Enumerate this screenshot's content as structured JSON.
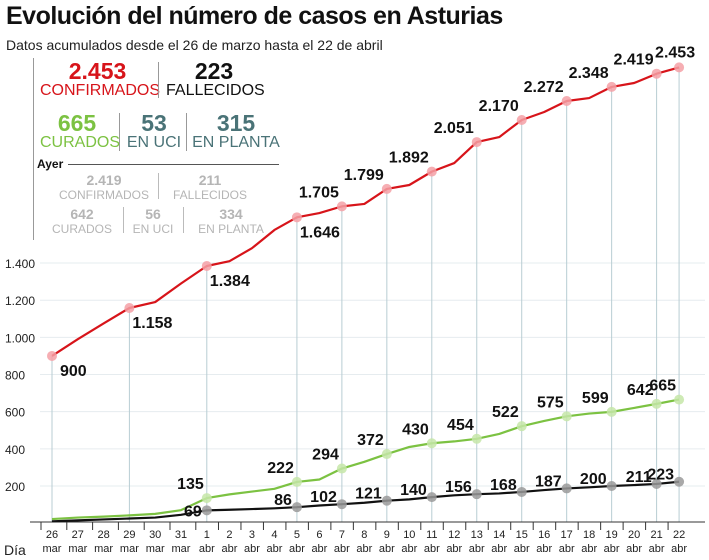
{
  "header": {
    "title": "Evolución del número de casos en Asturias",
    "subtitle": "Datos acumulados desde el 26 de marzo hasta el 22 de abril"
  },
  "summary": {
    "today": {
      "confirmed": {
        "value": "2.453",
        "label": "CONFIRMADOS",
        "color": "#d7141a"
      },
      "deaths": {
        "value": "223",
        "label": "FALLECIDOS",
        "color": "#111111"
      },
      "recovered": {
        "value": "665",
        "label": "CURADOS",
        "color": "#7cc242"
      },
      "icu": {
        "value": "53",
        "label": "EN UCI",
        "color": "#4a7377"
      },
      "ward": {
        "value": "315",
        "label": "EN PLANTA",
        "color": "#4a7377"
      }
    },
    "yesterday_label": "Ayer",
    "yesterday": {
      "confirmed": {
        "value": "2.419",
        "label": "CONFIRMADOS"
      },
      "deaths": {
        "value": "211",
        "label": "FALLECIDOS"
      },
      "recovered": {
        "value": "642",
        "label": "CURADOS"
      },
      "icu": {
        "value": "56",
        "label": "EN UCI"
      },
      "ward": {
        "value": "334",
        "label": "EN PLANTA"
      }
    }
  },
  "chart_data": {
    "type": "line",
    "title": "Evolución del número de casos en Asturias",
    "xlabel": "Día",
    "ylabel": "",
    "ylim": [
      0,
      2500
    ],
    "yticks": [
      200,
      400,
      600,
      800,
      1000,
      1200,
      1400
    ],
    "ytick_labels": [
      "200",
      "400",
      "600",
      "800",
      "1.000",
      "1.200",
      "1.400"
    ],
    "grid": true,
    "categories": [
      {
        "day": "26",
        "month": "mar"
      },
      {
        "day": "27",
        "month": "mar"
      },
      {
        "day": "28",
        "month": "mar"
      },
      {
        "day": "29",
        "month": "mar"
      },
      {
        "day": "30",
        "month": "mar"
      },
      {
        "day": "31",
        "month": "mar"
      },
      {
        "day": "1",
        "month": "abr"
      },
      {
        "day": "2",
        "month": "abr"
      },
      {
        "day": "3",
        "month": "abr"
      },
      {
        "day": "4",
        "month": "abr"
      },
      {
        "day": "5",
        "month": "abr"
      },
      {
        "day": "6",
        "month": "abr"
      },
      {
        "day": "7",
        "month": "abr"
      },
      {
        "day": "8",
        "month": "abr"
      },
      {
        "day": "9",
        "month": "abr"
      },
      {
        "day": "10",
        "month": "abr"
      },
      {
        "day": "11",
        "month": "abr"
      },
      {
        "day": "12",
        "month": "abr"
      },
      {
        "day": "13",
        "month": "abr"
      },
      {
        "day": "14",
        "month": "abr"
      },
      {
        "day": "15",
        "month": "abr"
      },
      {
        "day": "16",
        "month": "abr"
      },
      {
        "day": "17",
        "month": "abr"
      },
      {
        "day": "18",
        "month": "abr"
      },
      {
        "day": "19",
        "month": "abr"
      },
      {
        "day": "20",
        "month": "abr"
      },
      {
        "day": "21",
        "month": "abr"
      },
      {
        "day": "22",
        "month": "abr"
      }
    ],
    "series": [
      {
        "key": "confirmed",
        "color": "#d7141a",
        "marker_color": "#f4a0a6",
        "values": [
          900,
          990,
          1075,
          1158,
          1190,
          1290,
          1384,
          1410,
          1480,
          1578,
          1646,
          1669,
          1705,
          1718,
          1799,
          1820,
          1892,
          1938,
          2051,
          2078,
          2170,
          2213,
          2272,
          2288,
          2348,
          2369,
          2419,
          2453
        ],
        "labels": {
          "0": "900",
          "3": "1.158",
          "6": "1.384",
          "10": "1.646",
          "12": "1.705",
          "14": "1.799",
          "16": "1.892",
          "18": "2.051",
          "20": "2.170",
          "22": "2.272",
          "24": "2.348",
          "26": "2.419",
          "27": "2.453"
        }
      },
      {
        "key": "recovered",
        "color": "#7cc242",
        "marker_color": "#c6e6a8",
        "values": [
          22,
          30,
          35,
          42,
          50,
          70,
          135,
          155,
          170,
          185,
          222,
          235,
          294,
          330,
          372,
          410,
          430,
          440,
          454,
          480,
          522,
          550,
          575,
          590,
          599,
          620,
          642,
          665
        ],
        "labels": {
          "6": "135",
          "10": "222",
          "12": "294",
          "14": "372",
          "16": "430",
          "18": "454",
          "20": "522",
          "22": "575",
          "24": "599",
          "26": "642",
          "27": "665"
        }
      },
      {
        "key": "deaths",
        "color": "#111111",
        "marker_color": "#9a9a9a",
        "values": [
          10,
          15,
          20,
          25,
          30,
          45,
          69,
          72,
          76,
          80,
          86,
          95,
          102,
          110,
          121,
          128,
          140,
          150,
          156,
          160,
          168,
          178,
          187,
          193,
          200,
          205,
          211,
          223
        ],
        "labels": {
          "6": "69",
          "10": "86",
          "12": "102",
          "14": "121",
          "16": "140",
          "18": "156",
          "20": "168",
          "22": "187",
          "24": "200",
          "26": "211",
          "27": "223"
        }
      }
    ]
  }
}
